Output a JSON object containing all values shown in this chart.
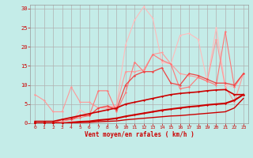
{
  "bg_color": "#c4ece8",
  "grid_color": "#b0b0b0",
  "xlabel": "Vent moyen/en rafales ( km/h )",
  "xlabel_color": "#cc0000",
  "tick_color": "#cc0000",
  "xlim": [
    -0.5,
    23.5
  ],
  "ylim": [
    0,
    31
  ],
  "yticks": [
    0,
    5,
    10,
    15,
    20,
    25,
    30
  ],
  "xticks": [
    0,
    1,
    2,
    3,
    4,
    5,
    6,
    7,
    8,
    9,
    10,
    11,
    12,
    13,
    14,
    15,
    16,
    17,
    18,
    19,
    20,
    21,
    22,
    23
  ],
  "series": [
    {
      "x": [
        0,
        1,
        2,
        3,
        4,
        5,
        6,
        7,
        8,
        9,
        10,
        11,
        12,
        13,
        14,
        15,
        16,
        17,
        18,
        19,
        20,
        21,
        22,
        23
      ],
      "y": [
        0,
        0,
        0,
        0,
        0,
        3.5,
        2.0,
        4.0,
        4.5,
        4.5,
        20.5,
        27.0,
        30.5,
        27.5,
        16.0,
        15.5,
        23.0,
        23.5,
        22.0,
        11.0,
        25.0,
        10.0,
        9.5,
        13.0
      ],
      "color": "#ffbbbb",
      "lw": 0.8,
      "marker": "D",
      "ms": 1.5,
      "zorder": 2
    },
    {
      "x": [
        0,
        1,
        2,
        3,
        4,
        5,
        6,
        7,
        8,
        9,
        10,
        11,
        12,
        13,
        14,
        15,
        16,
        17,
        18,
        19,
        20,
        21,
        22,
        23
      ],
      "y": [
        7.5,
        6.0,
        3.0,
        3.0,
        9.5,
        5.5,
        5.5,
        4.0,
        4.0,
        4.5,
        13.5,
        13.5,
        14.0,
        18.0,
        18.5,
        15.5,
        13.0,
        12.5,
        12.0,
        11.0,
        22.0,
        9.5,
        5.5,
        13.0
      ],
      "color": "#ff9999",
      "lw": 0.8,
      "marker": "D",
      "ms": 1.5,
      "zorder": 3
    },
    {
      "x": [
        0,
        1,
        2,
        3,
        4,
        5,
        6,
        7,
        8,
        9,
        10,
        11,
        12,
        13,
        14,
        15,
        16,
        17,
        18,
        19,
        20,
        21,
        22,
        23
      ],
      "y": [
        0,
        0,
        0,
        0.5,
        1.0,
        1.5,
        2.0,
        8.5,
        8.5,
        3.0,
        8.0,
        16.0,
        13.5,
        18.0,
        16.5,
        15.5,
        9.0,
        9.5,
        12.0,
        11.0,
        10.0,
        24.0,
        9.5,
        13.0
      ],
      "color": "#ff7777",
      "lw": 0.8,
      "marker": "D",
      "ms": 1.5,
      "zorder": 3
    },
    {
      "x": [
        0,
        1,
        2,
        3,
        4,
        5,
        6,
        7,
        8,
        9,
        10,
        11,
        12,
        13,
        14,
        15,
        16,
        17,
        18,
        19,
        20,
        21,
        22,
        23
      ],
      "y": [
        0,
        0,
        0,
        1.0,
        1.0,
        2.0,
        2.0,
        4.0,
        4.5,
        3.5,
        10.0,
        12.5,
        13.5,
        13.5,
        14.5,
        10.5,
        10.0,
        13.0,
        12.5,
        11.5,
        10.5,
        10.5,
        10.0,
        13.0
      ],
      "color": "#ee4444",
      "lw": 0.9,
      "marker": "D",
      "ms": 1.5,
      "zorder": 4
    },
    {
      "x": [
        0,
        1,
        2,
        3,
        4,
        5,
        6,
        7,
        8,
        9,
        10,
        11,
        12,
        13,
        14,
        15,
        16,
        17,
        18,
        19,
        20,
        21,
        22,
        23
      ],
      "y": [
        0.5,
        0.5,
        0.5,
        1.0,
        1.5,
        2.0,
        2.5,
        3.0,
        3.5,
        4.0,
        5.0,
        5.5,
        6.0,
        6.5,
        7.0,
        7.5,
        7.8,
        8.0,
        8.2,
        8.5,
        8.7,
        8.8,
        7.5,
        7.5
      ],
      "color": "#cc0000",
      "lw": 1.2,
      "marker": "D",
      "ms": 1.5,
      "zorder": 5
    },
    {
      "x": [
        0,
        1,
        2,
        3,
        4,
        5,
        6,
        7,
        8,
        9,
        10,
        11,
        12,
        13,
        14,
        15,
        16,
        17,
        18,
        19,
        20,
        21,
        22,
        23
      ],
      "y": [
        0,
        0,
        0,
        0,
        0.2,
        0.4,
        0.5,
        0.8,
        1.0,
        1.3,
        1.8,
        2.2,
        2.6,
        3.0,
        3.4,
        3.7,
        4.0,
        4.3,
        4.5,
        4.8,
        5.0,
        5.2,
        6.0,
        7.5
      ],
      "color": "#cc0000",
      "lw": 1.5,
      "marker": "D",
      "ms": 1.5,
      "zorder": 5
    },
    {
      "x": [
        0,
        1,
        2,
        3,
        4,
        5,
        6,
        7,
        8,
        9,
        10,
        11,
        12,
        13,
        14,
        15,
        16,
        17,
        18,
        19,
        20,
        21,
        22,
        23
      ],
      "y": [
        0,
        0,
        0,
        0,
        0.1,
        0.2,
        0.25,
        0.4,
        0.5,
        0.6,
        0.9,
        1.1,
        1.3,
        1.5,
        1.7,
        1.9,
        2.0,
        2.2,
        2.4,
        2.6,
        2.8,
        3.0,
        4.0,
        6.5
      ],
      "color": "#cc0000",
      "lw": 1.0,
      "marker": null,
      "ms": 0,
      "zorder": 4
    }
  ]
}
